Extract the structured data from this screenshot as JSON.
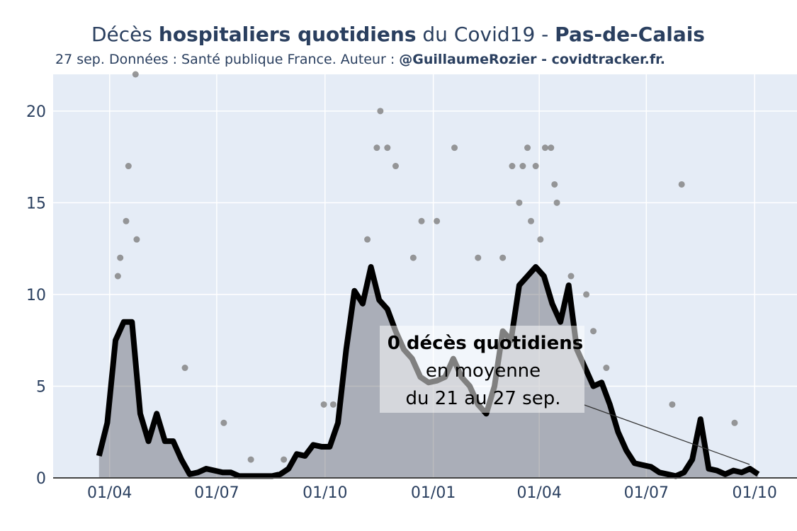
{
  "chart_data": {
    "type": "line",
    "title": [
      "Décès ",
      "hospitaliers quotidiens",
      " du Covid19 - ",
      "Pas-de-Calais"
    ],
    "subtitle": [
      "27 sep. Données : Santé publique France. Auteur : ",
      "@GuillaumeRozier - covidtracker.fr."
    ],
    "annotation": [
      "0 décès quotidiens",
      "en moyenne",
      "du 21 au 27 sep."
    ],
    "xlim": [
      -48,
      584
    ],
    "ylim": [
      0,
      22
    ],
    "xticks": [
      {
        "value": 0,
        "label": "01/04"
      },
      {
        "value": 91,
        "label": "01/07"
      },
      {
        "value": 183,
        "label": "01/10"
      },
      {
        "value": 275,
        "label": "01/01"
      },
      {
        "value": 365,
        "label": "01/04"
      },
      {
        "value": 456,
        "label": "01/07"
      },
      {
        "value": 548,
        "label": "01/10"
      }
    ],
    "yticks": [
      0,
      5,
      10,
      15,
      20
    ],
    "grid": true,
    "series": [
      {
        "type": "scatter",
        "color": "#7f7f7f",
        "x": [
          22,
          16,
          14,
          23,
          9,
          7,
          64,
          97,
          230,
          227,
          236,
          243,
          265,
          278,
          293,
          342,
          351,
          362,
          355,
          370,
          375,
          378,
          380,
          348,
          358,
          486,
          531,
          405,
          411,
          422,
          478,
          182,
          190,
          219,
          258,
          313,
          334,
          366,
          208,
          392,
          148,
          120
        ],
        "values": [
          22,
          17,
          14,
          13,
          12,
          11,
          6,
          3,
          20,
          18,
          18,
          17,
          14,
          14,
          18,
          17,
          17,
          17,
          18,
          18,
          18,
          16,
          15,
          15,
          14,
          16,
          3,
          10,
          8,
          6,
          4,
          4,
          4,
          13,
          12,
          12,
          12,
          13,
          10,
          11,
          1,
          1
        ]
      },
      {
        "type": "line",
        "color": "#000000",
        "x": [
          -9,
          -2,
          5,
          12,
          19,
          26,
          33,
          40,
          47,
          54,
          61,
          68,
          75,
          82,
          89,
          96,
          103,
          110,
          117,
          124,
          131,
          138,
          145,
          152,
          159,
          166,
          173,
          180,
          187,
          194,
          201,
          208,
          215,
          222,
          229,
          236,
          243,
          250,
          257,
          264,
          271,
          278,
          285,
          292,
          299,
          306,
          313,
          320,
          327,
          334,
          341,
          348,
          355,
          362,
          369,
          376,
          383,
          390,
          397,
          404,
          411,
          418,
          425,
          432,
          439,
          446,
          453,
          460,
          467,
          474,
          481,
          488,
          495,
          502,
          509,
          516,
          523,
          530,
          537,
          544,
          551
        ],
        "values": [
          1.2,
          3,
          7.5,
          8.5,
          8.5,
          3.5,
          2,
          3.5,
          2,
          2,
          1,
          0.2,
          0.3,
          0.5,
          0.4,
          0.3,
          0.3,
          0.1,
          0.1,
          0.1,
          0.1,
          0.1,
          0.2,
          0.5,
          1.3,
          1.2,
          1.8,
          1.7,
          1.7,
          3,
          7,
          10.2,
          9.5,
          11.5,
          9.7,
          9.2,
          8,
          7,
          6.5,
          5.5,
          5.2,
          5.3,
          5.5,
          6.5,
          5.5,
          5,
          4,
          3.5,
          5,
          8,
          7.5,
          10.5,
          11,
          11.5,
          11,
          9.5,
          8.5,
          10.5,
          7,
          6,
          5,
          5.2,
          4,
          2.5,
          1.5,
          0.8,
          0.7,
          0.6,
          0.3,
          0.2,
          0.1,
          0.3,
          1,
          3.2,
          0.5,
          0.4,
          0.2,
          0.4,
          0.3,
          0.5,
          0.2
        ]
      }
    ]
  }
}
